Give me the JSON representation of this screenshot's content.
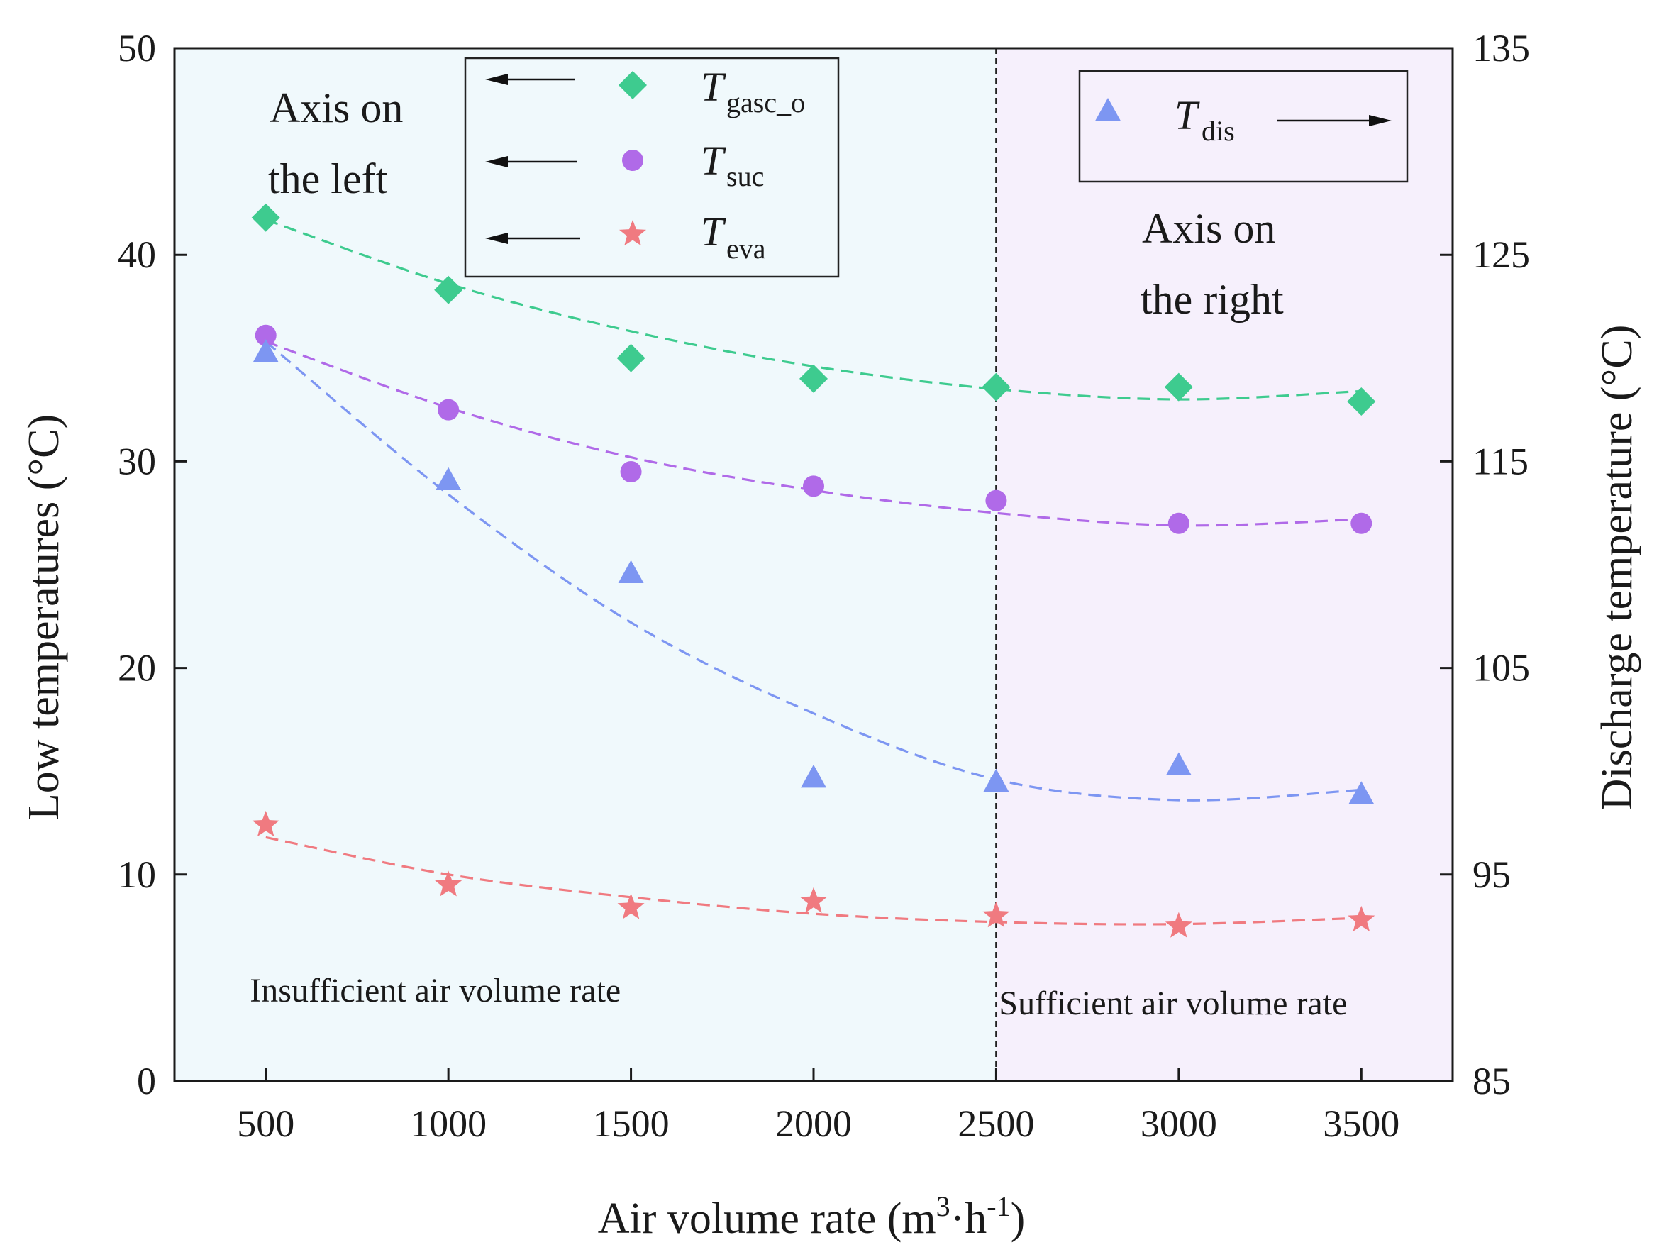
{
  "chart_data": {
    "type": "scatter",
    "xlabel": "Air volume rate (m3·h-1)",
    "xlabel_parts": {
      "base": "Air volume rate (m",
      "sup1": "3",
      "mid": "·h",
      "sup2": "-1",
      "end": ")"
    },
    "ylabel_left": "Low temperatures (°C)",
    "ylabel_right": "Discharge temperature (°C)",
    "xlim": [
      250,
      3750
    ],
    "ylim_left": [
      0,
      50
    ],
    "ylim_right": [
      85,
      135
    ],
    "x_ticks": [
      500,
      1000,
      1500,
      2000,
      2500,
      3000,
      3500
    ],
    "y_ticks_left": [
      0,
      10,
      20,
      30,
      40,
      50
    ],
    "y_ticks_right": [
      85,
      95,
      105,
      115,
      125,
      135
    ],
    "divider_x": 2500,
    "regions": [
      {
        "name": "insufficient",
        "label": "Insufficient air volume rate",
        "color": "#f0f9fc"
      },
      {
        "name": "sufficient",
        "label": "Sufficient air volume rate",
        "color": "#f6f0fc"
      }
    ],
    "annotations": {
      "left_axis_line1": "Axis on",
      "left_axis_line2": "the left",
      "right_axis_line1": "Axis on",
      "right_axis_line2": "the right"
    },
    "series": [
      {
        "key": "gasc",
        "symbol": "T",
        "subscript": "gasc_o",
        "axis": "left",
        "marker": "diamond",
        "color": "#3ecb8f",
        "x": [
          500,
          1000,
          1500,
          2000,
          2500,
          3000,
          3500
        ],
        "y": [
          41.8,
          38.3,
          35.0,
          34.0,
          33.6,
          33.6,
          32.9
        ],
        "fit": [
          41.7,
          38.6,
          36.3,
          34.6,
          33.5,
          33.0,
          33.4
        ]
      },
      {
        "key": "suc",
        "symbol": "T",
        "subscript": "suc",
        "axis": "left",
        "marker": "circle",
        "color": "#b06ae8",
        "x": [
          500,
          1000,
          1500,
          2000,
          2500,
          3000,
          3500
        ],
        "y": [
          36.1,
          32.5,
          29.5,
          28.8,
          28.1,
          27.0,
          27.0
        ],
        "fit": [
          35.8,
          32.6,
          30.2,
          28.6,
          27.5,
          26.9,
          27.2
        ]
      },
      {
        "key": "eva",
        "symbol": "T",
        "subscript": "eva",
        "axis": "left",
        "marker": "star",
        "color": "#f07a80",
        "x": [
          500,
          1000,
          1500,
          2000,
          2500,
          3000,
          3500
        ],
        "y": [
          12.4,
          9.5,
          8.4,
          8.7,
          8.0,
          7.5,
          7.8
        ],
        "fit": [
          11.8,
          10.0,
          8.9,
          8.1,
          7.7,
          7.6,
          7.9
        ]
      },
      {
        "key": "dis",
        "symbol": "T",
        "subscript": "dis",
        "axis": "right",
        "marker": "triangle",
        "color": "#7d96f2",
        "x": [
          500,
          1000,
          1500,
          2000,
          2500,
          3000,
          3500
        ],
        "y": [
          120.3,
          114.1,
          109.6,
          99.7,
          99.5,
          100.3,
          98.9
        ],
        "fit": [
          120.8,
          113.4,
          107.2,
          102.8,
          99.6,
          98.6,
          99.1
        ]
      }
    ]
  }
}
